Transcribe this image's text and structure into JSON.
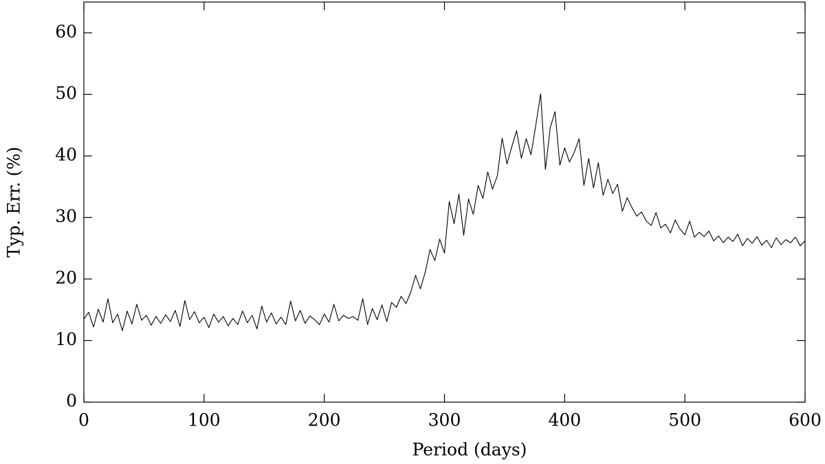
{
  "chart_data": {
    "type": "line",
    "x_label": "Period (days)",
    "y_label": "Typ. Err. (%)",
    "xlim": [
      0,
      600
    ],
    "xticks": [
      0,
      100,
      200,
      300,
      400,
      500,
      600
    ],
    "ylim": [
      0,
      65
    ],
    "yticks": [
      0,
      10,
      20,
      30,
      40,
      50,
      60
    ],
    "color": "#000000",
    "x": [
      0,
      4,
      8,
      12,
      16,
      20,
      24,
      28,
      32,
      36,
      40,
      44,
      48,
      52,
      56,
      60,
      64,
      68,
      72,
      76,
      80,
      84,
      88,
      92,
      96,
      100,
      104,
      108,
      112,
      116,
      120,
      124,
      128,
      132,
      136,
      140,
      144,
      148,
      152,
      156,
      160,
      164,
      168,
      172,
      176,
      180,
      184,
      188,
      192,
      196,
      200,
      204,
      208,
      212,
      216,
      220,
      224,
      228,
      232,
      236,
      240,
      244,
      248,
      252,
      256,
      260,
      264,
      268,
      272,
      276,
      280,
      284,
      288,
      292,
      296,
      300,
      304,
      308,
      312,
      316,
      320,
      324,
      328,
      332,
      336,
      340,
      344,
      348,
      352,
      356,
      360,
      364,
      368,
      372,
      376,
      380,
      384,
      388,
      392,
      396,
      400,
      404,
      408,
      412,
      416,
      420,
      424,
      428,
      432,
      436,
      440,
      444,
      448,
      452,
      456,
      460,
      464,
      468,
      472,
      476,
      480,
      484,
      488,
      492,
      496,
      500,
      504,
      508,
      512,
      516,
      520,
      524,
      528,
      532,
      536,
      540,
      544,
      548,
      552,
      556,
      560,
      564,
      568,
      572,
      576,
      580,
      584,
      588,
      592,
      596,
      600
    ],
    "values": [
      13.5,
      14.6,
      12.2,
      15.1,
      13.0,
      16.8,
      12.9,
      14.3,
      11.6,
      14.8,
      12.7,
      15.9,
      13.3,
      14.1,
      12.5,
      13.9,
      12.8,
      14.2,
      13.1,
      14.9,
      12.3,
      16.5,
      13.4,
      14.7,
      12.9,
      13.8,
      12.1,
      14.3,
      13.0,
      13.9,
      12.4,
      13.6,
      12.6,
      14.8,
      12.9,
      14.1,
      11.9,
      15.6,
      13.0,
      14.5,
      12.7,
      13.8,
      12.6,
      16.4,
      13.2,
      14.9,
      12.8,
      14.0,
      13.4,
      12.6,
      14.3,
      13.0,
      15.9,
      13.2,
      14.1,
      13.6,
      13.9,
      13.3,
      16.8,
      12.6,
      15.2,
      13.4,
      15.8,
      13.1,
      16.2,
      15.4,
      17.2,
      16.0,
      17.9,
      20.6,
      18.4,
      21.1,
      24.8,
      23.0,
      26.5,
      24.2,
      32.6,
      29.0,
      33.8,
      27.1,
      33.0,
      30.5,
      35.2,
      33.1,
      37.4,
      34.6,
      36.8,
      42.9,
      38.7,
      41.5,
      44.1,
      39.6,
      42.8,
      40.2,
      45.0,
      50.1,
      37.8,
      44.6,
      47.2,
      38.5,
      41.3,
      39.0,
      40.6,
      42.8,
      35.2,
      39.6,
      34.8,
      38.9,
      33.6,
      36.2,
      33.9,
      35.4,
      31.0,
      33.2,
      31.6,
      30.2,
      30.9,
      29.4,
      28.7,
      30.8,
      28.3,
      28.9,
      27.5,
      29.6,
      28.1,
      27.2,
      29.4,
      26.8,
      27.6,
      26.9,
      27.8,
      26.2,
      27.0,
      25.9,
      26.8,
      26.1,
      27.3,
      25.4,
      26.6,
      25.8,
      26.9,
      25.5,
      26.3,
      25.1,
      26.7,
      25.6,
      26.4,
      25.9,
      26.8,
      25.4,
      26.2
    ]
  }
}
